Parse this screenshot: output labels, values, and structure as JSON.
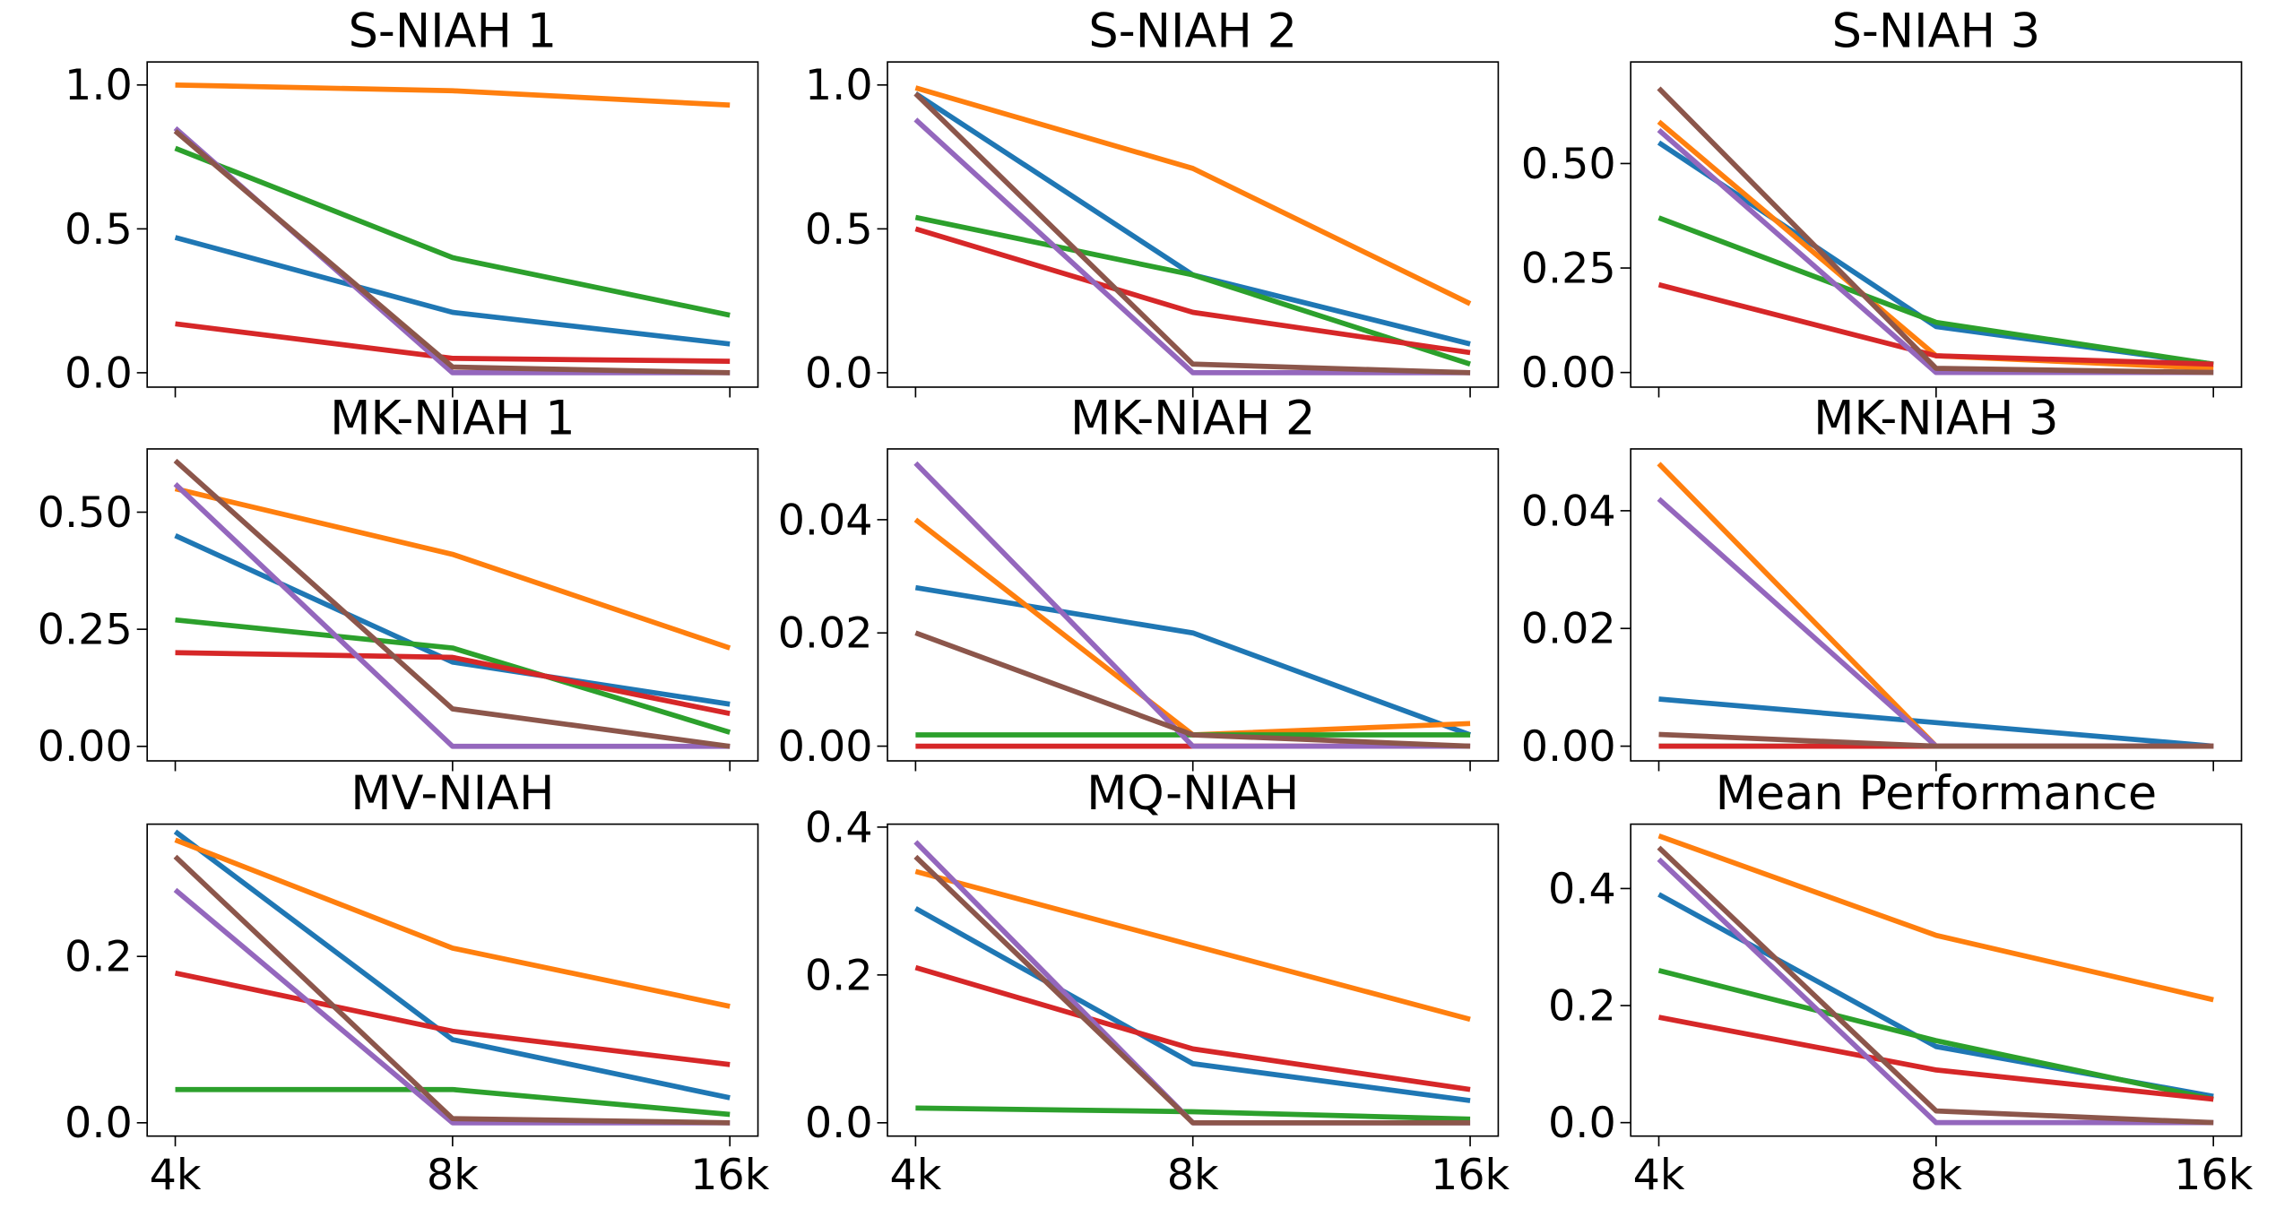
{
  "chart_data": [
    {
      "type": "line",
      "title": "S-NIAH 1",
      "ylim": [
        -0.05,
        1.08
      ],
      "yticks": [
        {
          "value": 0,
          "label": "0.0"
        },
        0.5,
        {
          "value": 1,
          "label": "1.0"
        }
      ],
      "series": [
        {
          "color": "#1f77b4",
          "values": [
            0.47,
            0.21,
            0.1
          ]
        },
        {
          "color": "#ff7f0e",
          "values": [
            1.0,
            0.98,
            0.93
          ]
        },
        {
          "color": "#2ca02c",
          "values": [
            0.78,
            0.4,
            0.2
          ]
        },
        {
          "color": "#d62728",
          "values": [
            0.17,
            0.05,
            0.04
          ]
        },
        {
          "color": "#9467bd",
          "values": [
            0.85,
            0.0,
            0.0
          ]
        },
        {
          "color": "#8c564b",
          "values": [
            0.84,
            0.02,
            0.0
          ]
        }
      ]
    },
    {
      "type": "line",
      "title": "S-NIAH 2",
      "ylim": [
        -0.05,
        1.08
      ],
      "yticks": [
        {
          "value": 0,
          "label": "0.0"
        },
        0.5,
        {
          "value": 1,
          "label": "1.0"
        }
      ],
      "series": [
        {
          "color": "#1f77b4",
          "values": [
            0.97,
            0.34,
            0.1
          ]
        },
        {
          "color": "#ff7f0e",
          "values": [
            0.99,
            0.71,
            0.24
          ]
        },
        {
          "color": "#2ca02c",
          "values": [
            0.54,
            0.34,
            0.03
          ]
        },
        {
          "color": "#d62728",
          "values": [
            0.5,
            0.21,
            0.07
          ]
        },
        {
          "color": "#9467bd",
          "values": [
            0.88,
            0.0,
            0.0
          ]
        },
        {
          "color": "#8c564b",
          "values": [
            0.97,
            0.03,
            0.0
          ]
        }
      ]
    },
    {
      "type": "line",
      "title": "S-NIAH 3",
      "ylim": [
        -0.035,
        0.743
      ],
      "yticks": [
        {
          "value": 0,
          "label": "0.00"
        },
        0.25,
        {
          "value": 0.5,
          "label": "0.50"
        }
      ],
      "series": [
        {
          "color": "#1f77b4",
          "values": [
            0.55,
            0.11,
            0.02
          ]
        },
        {
          "color": "#ff7f0e",
          "values": [
            0.6,
            0.04,
            0.01
          ]
        },
        {
          "color": "#2ca02c",
          "values": [
            0.37,
            0.12,
            0.02
          ]
        },
        {
          "color": "#d62728",
          "values": [
            0.21,
            0.04,
            0.02
          ]
        },
        {
          "color": "#9467bd",
          "values": [
            0.58,
            0.0,
            0.0
          ]
        },
        {
          "color": "#8c564b",
          "values": [
            0.68,
            0.01,
            0.0
          ]
        }
      ]
    },
    {
      "type": "line",
      "title": "MK-NIAH 1",
      "ylim": [
        -0.031,
        0.635
      ],
      "yticks": [
        {
          "value": 0,
          "label": "0.00"
        },
        0.25,
        {
          "value": 0.5,
          "label": "0.50"
        }
      ],
      "series": [
        {
          "color": "#1f77b4",
          "values": [
            0.45,
            0.18,
            0.09
          ]
        },
        {
          "color": "#ff7f0e",
          "values": [
            0.55,
            0.41,
            0.21
          ]
        },
        {
          "color": "#2ca02c",
          "values": [
            0.27,
            0.21,
            0.03
          ]
        },
        {
          "color": "#d62728",
          "values": [
            0.2,
            0.19,
            0.07
          ]
        },
        {
          "color": "#9467bd",
          "values": [
            0.56,
            0.0,
            0.0
          ]
        },
        {
          "color": "#8c564b",
          "values": [
            0.61,
            0.08,
            0.0
          ]
        }
      ]
    },
    {
      "type": "line",
      "title": "MK-NIAH 2",
      "ylim": [
        -0.0026,
        0.0525
      ],
      "yticks": [
        {
          "value": 0,
          "label": "0.00"
        },
        0.02,
        0.04
      ],
      "series": [
        {
          "color": "#1f77b4",
          "values": [
            0.028,
            0.02,
            0.002
          ]
        },
        {
          "color": "#ff7f0e",
          "values": [
            0.04,
            0.002,
            0.004
          ]
        },
        {
          "color": "#2ca02c",
          "values": [
            0.002,
            0.002,
            0.002
          ]
        },
        {
          "color": "#d62728",
          "values": [
            0.0,
            0.0,
            0.0
          ]
        },
        {
          "color": "#9467bd",
          "values": [
            0.05,
            0.0,
            0.0
          ]
        },
        {
          "color": "#8c564b",
          "values": [
            0.02,
            0.002,
            0.0
          ]
        }
      ]
    },
    {
      "type": "line",
      "title": "MK-NIAH 3",
      "ylim": [
        -0.0025,
        0.0505
      ],
      "yticks": [
        {
          "value": 0,
          "label": "0.00"
        },
        0.02,
        0.04
      ],
      "series": [
        {
          "color": "#1f77b4",
          "values": [
            0.008,
            0.004,
            0.0
          ]
        },
        {
          "color": "#ff7f0e",
          "values": [
            0.048,
            0.0,
            0.0
          ]
        },
        {
          "color": "#2ca02c",
          "values": [
            0.0,
            0.0,
            0.0
          ]
        },
        {
          "color": "#d62728",
          "values": [
            0.0,
            0.0,
            0.0
          ]
        },
        {
          "color": "#9467bd",
          "values": [
            0.042,
            0.0,
            0.0
          ]
        },
        {
          "color": "#8c564b",
          "values": [
            0.002,
            0.0,
            0.0
          ]
        }
      ]
    },
    {
      "type": "line",
      "title": "MV-NIAH",
      "categories": [
        "4k",
        "8k",
        "16k"
      ],
      "ylim": [
        -0.016,
        0.359
      ],
      "yticks": [
        {
          "value": 0,
          "label": "0.0"
        },
        0.2
      ],
      "series": [
        {
          "color": "#1f77b4",
          "values": [
            0.35,
            0.1,
            0.03
          ]
        },
        {
          "color": "#ff7f0e",
          "values": [
            0.34,
            0.21,
            0.14
          ]
        },
        {
          "color": "#2ca02c",
          "values": [
            0.04,
            0.04,
            0.01
          ]
        },
        {
          "color": "#d62728",
          "values": [
            0.18,
            0.11,
            0.07
          ]
        },
        {
          "color": "#9467bd",
          "values": [
            0.28,
            0.0,
            0.0
          ]
        },
        {
          "color": "#8c564b",
          "values": [
            0.32,
            0.005,
            0.0
          ]
        }
      ]
    },
    {
      "type": "line",
      "title": "MQ-NIAH",
      "categories": [
        "4k",
        "8k",
        "16k"
      ],
      "ylim": [
        -0.018,
        0.404
      ],
      "yticks": [
        {
          "value": 0,
          "label": "0.0"
        },
        0.2,
        0.4
      ],
      "series": [
        {
          "color": "#1f77b4",
          "values": [
            0.29,
            0.08,
            0.03
          ]
        },
        {
          "color": "#ff7f0e",
          "values": [
            0.34,
            0.24,
            0.14
          ]
        },
        {
          "color": "#2ca02c",
          "values": [
            0.02,
            0.015,
            0.005
          ]
        },
        {
          "color": "#d62728",
          "values": [
            0.21,
            0.1,
            0.045
          ]
        },
        {
          "color": "#9467bd",
          "values": [
            0.38,
            0.0,
            0.0
          ]
        },
        {
          "color": "#8c564b",
          "values": [
            0.36,
            0.0,
            0.0
          ]
        }
      ]
    },
    {
      "type": "line",
      "title": "Mean Performance",
      "categories": [
        "4k",
        "8k",
        "16k"
      ],
      "ylim": [
        -0.023,
        0.51
      ],
      "yticks": [
        {
          "value": 0,
          "label": "0.0"
        },
        0.2,
        0.4
      ],
      "series": [
        {
          "color": "#1f77b4",
          "values": [
            0.39,
            0.13,
            0.045
          ]
        },
        {
          "color": "#ff7f0e",
          "values": [
            0.49,
            0.32,
            0.21
          ]
        },
        {
          "color": "#2ca02c",
          "values": [
            0.26,
            0.14,
            0.04
          ]
        },
        {
          "color": "#d62728",
          "values": [
            0.18,
            0.09,
            0.04
          ]
        },
        {
          "color": "#9467bd",
          "values": [
            0.45,
            0.0,
            0.0
          ]
        },
        {
          "color": "#8c564b",
          "values": [
            0.47,
            0.02,
            0.0
          ]
        }
      ]
    }
  ]
}
